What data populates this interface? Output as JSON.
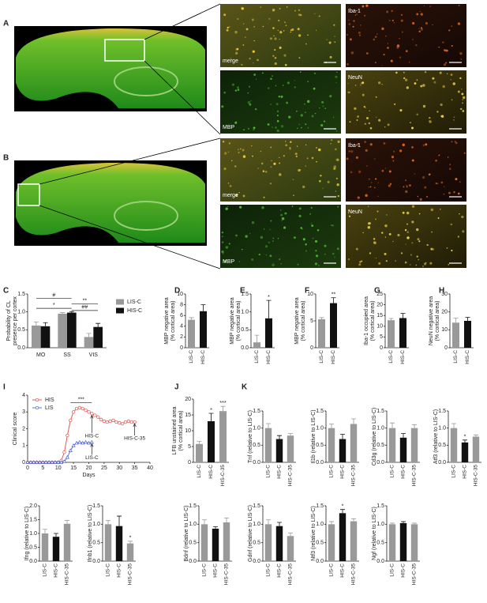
{
  "image_panels": [
    {
      "letter": "A",
      "tiles": [
        "merge",
        "Iba-1",
        "MBP",
        "NeuN"
      ]
    },
    {
      "letter": "B",
      "tiles": [
        "merge",
        "Iba-1",
        "MBP",
        "NeuN"
      ]
    }
  ],
  "chart_data": [
    {
      "type": "grouped_bar",
      "letter": "C",
      "ylabel": [
        "Probability of CL",
        "presence per cortex"
      ],
      "categories": [
        "MO",
        "SS",
        "VIS"
      ],
      "series": [
        {
          "name": "LIS-C",
          "color": "#999999",
          "values": [
            0.62,
            0.95,
            0.3
          ],
          "errors": [
            0.1,
            0.03,
            0.1
          ]
        },
        {
          "name": "HIS-C",
          "color": "#111111",
          "values": [
            0.6,
            0.98,
            0.58
          ],
          "errors": [
            0.1,
            0.03,
            0.1
          ]
        }
      ],
      "ylim": [
        0,
        1.5
      ],
      "yticks": [
        {
          "value": 0,
          "label": "0.0"
        },
        0.5,
        {
          "value": 1,
          "label": "1.0"
        },
        1.5
      ],
      "annotations": [
        "#",
        "**",
        "*",
        "##"
      ]
    },
    {
      "type": "bar",
      "letter": "D",
      "ylabel": [
        "MBP negative area",
        "(% cortical area)"
      ],
      "categories": [
        "LIS-C",
        "HIS-C"
      ],
      "values": [
        5.2,
        6.8
      ],
      "errors": [
        0.4,
        1.2
      ],
      "colors": [
        "#999999",
        "#111111"
      ],
      "sig": [
        null,
        null
      ],
      "ylim": [
        0,
        10
      ],
      "yticks": [
        0,
        2,
        4,
        6,
        8,
        10
      ]
    },
    {
      "type": "bar",
      "letter": "E",
      "ylabel": [
        "MBP negative area",
        "(% cortical area)"
      ],
      "categories": [
        "LIS-C",
        "HIS-C"
      ],
      "values": [
        0.15,
        0.82
      ],
      "errors": [
        0.2,
        0.5
      ],
      "colors": [
        "#999999",
        "#111111"
      ],
      "sig": [
        null,
        "*"
      ],
      "ylim": [
        0,
        1.5
      ],
      "yticks": [
        {
          "value": 0,
          "label": "0.0"
        },
        0.5,
        {
          "value": 1,
          "label": "1.0"
        },
        1.5
      ]
    },
    {
      "type": "bar",
      "letter": "F",
      "ylabel": [
        "MBP negative area",
        "(% cortical area)"
      ],
      "categories": [
        "LIS-C",
        "HIS-C"
      ],
      "values": [
        5.3,
        8.3
      ],
      "errors": [
        0.3,
        1.0
      ],
      "colors": [
        "#999999",
        "#111111"
      ],
      "sig": [
        null,
        "**"
      ],
      "ylim": [
        0,
        10
      ],
      "yticks": [
        0,
        5,
        10
      ]
    },
    {
      "type": "bar",
      "letter": "G",
      "ylabel": [
        "Iba-1 occupied area",
        "(% cortical area)"
      ],
      "categories": [
        "LIS-C",
        "HIS-C"
      ],
      "values": [
        12.8,
        13.8
      ],
      "errors": [
        0.8,
        2.2
      ],
      "colors": [
        "#999999",
        "#111111"
      ],
      "sig": [
        null,
        null
      ],
      "ylim": [
        0,
        25
      ],
      "yticks": [
        0,
        5,
        10,
        15,
        20,
        25
      ]
    },
    {
      "type": "bar",
      "letter": "H",
      "ylabel": [
        "NeuN negative area",
        "(% cortical area)"
      ],
      "categories": [
        "LIS-C",
        "HIS-C"
      ],
      "values": [
        14,
        15
      ],
      "errors": [
        2.5,
        2
      ],
      "colors": [
        "#999999",
        "#111111"
      ],
      "sig": [
        null,
        null
      ],
      "ylim": [
        0,
        30
      ],
      "yticks": [
        0,
        10,
        20,
        30
      ]
    },
    {
      "type": "line",
      "letter": "I",
      "ylabel": "Clinical score",
      "xlabel": "Days",
      "xlim": [
        0,
        40
      ],
      "xticks": [
        0,
        5,
        10,
        15,
        20,
        25,
        30,
        35,
        40
      ],
      "ylim": [
        0,
        4
      ],
      "yticks": [
        0,
        1,
        2,
        3,
        4
      ],
      "series": [
        {
          "name": "HIS",
          "color": "#e04848",
          "x": [
            0,
            1,
            2,
            3,
            4,
            5,
            6,
            7,
            8,
            9,
            10,
            11,
            12,
            13,
            14,
            15,
            16,
            17,
            18,
            19,
            20,
            21,
            22,
            23,
            24,
            25,
            26,
            27,
            28,
            29,
            30,
            31,
            32,
            33,
            34,
            35
          ],
          "values": [
            0,
            0,
            0,
            0,
            0,
            0,
            0,
            0,
            0,
            0,
            0,
            0.1,
            0.6,
            1.6,
            2.5,
            3.0,
            3.2,
            3.25,
            3.2,
            3.1,
            3.0,
            2.9,
            2.8,
            2.7,
            2.55,
            2.45,
            2.4,
            2.45,
            2.5,
            2.4,
            2.35,
            2.3,
            2.4,
            2.45,
            2.4,
            2.4
          ]
        },
        {
          "name": "LIS",
          "color": "#4a5fd0",
          "x": [
            0,
            1,
            2,
            3,
            4,
            5,
            6,
            7,
            8,
            9,
            10,
            11,
            12,
            13,
            14,
            15,
            16,
            17,
            18,
            19,
            20,
            21
          ],
          "values": [
            0,
            0,
            0,
            0,
            0,
            0,
            0,
            0,
            0,
            0,
            0,
            0,
            0.05,
            0.3,
            0.7,
            1.0,
            1.15,
            1.2,
            1.15,
            1.2,
            1.15,
            1.2
          ]
        }
      ],
      "annotations": [
        "***",
        "HIS-C",
        "LIS-C",
        "HIS-C-35"
      ]
    },
    {
      "type": "bar",
      "letter": "J",
      "ylabel": [
        "LFB unstained area",
        "(% cortical area)"
      ],
      "categories": [
        "LIS-C",
        "HIS-C",
        "HIS-C-35"
      ],
      "values": [
        5.8,
        13,
        16.2
      ],
      "errors": [
        0.8,
        2.5,
        1.5
      ],
      "colors": [
        "#999999",
        "#111111",
        "#999999"
      ],
      "sig": [
        null,
        "*",
        "***"
      ],
      "ylim": [
        0,
        20
      ],
      "yticks": [
        0,
        5,
        10,
        15,
        20
      ]
    },
    {
      "type": "bar",
      "letter": "K",
      "ylabel": "Tnf (relative to LIS-C)",
      "categories": [
        "LIS-C",
        "HIS-C",
        "HIS-C-35"
      ],
      "values": [
        1.0,
        0.68,
        0.78
      ],
      "errors": [
        0.13,
        0.1,
        0.06
      ],
      "colors": [
        "#999999",
        "#111111",
        "#999999"
      ],
      "sig": [
        null,
        null,
        null
      ],
      "ylim": [
        0,
        1.5
      ],
      "yticks": [
        {
          "value": 0,
          "label": "0.0"
        },
        0.5,
        {
          "value": 1,
          "label": "1.0"
        },
        1.5
      ]
    },
    {
      "type": "bar",
      "ylabel": "Il1b (relative to LIS-C)",
      "categories": [
        "LIS-C",
        "HIS-C",
        "HIS-C-35"
      ],
      "values": [
        1.0,
        0.68,
        1.12
      ],
      "errors": [
        0.12,
        0.14,
        0.15
      ],
      "colors": [
        "#999999",
        "#111111",
        "#999999"
      ],
      "sig": [
        null,
        null,
        null
      ],
      "ylim": [
        0,
        1.5
      ],
      "yticks": [
        {
          "value": 0,
          "label": "0.0"
        },
        0.5,
        {
          "value": 1,
          "label": "1.0"
        },
        1.5
      ]
    },
    {
      "type": "bar",
      "ylabel": "Cd3g (relative to LIS-C)",
      "categories": [
        "LIS-C",
        "HIS-C",
        "HIS-C-35"
      ],
      "values": [
        1.0,
        0.72,
        1.0
      ],
      "errors": [
        0.15,
        0.12,
        0.1
      ],
      "colors": [
        "#999999",
        "#111111",
        "#999999"
      ],
      "sig": [
        null,
        null,
        null
      ],
      "ylim": [
        0,
        1.5
      ],
      "yticks": [
        {
          "value": 0,
          "label": "0.0"
        },
        0.5,
        {
          "value": 1,
          "label": "1.0"
        },
        1.5
      ]
    },
    {
      "type": "bar",
      "ylabel": "Atf3 (relative to LIS-C)",
      "categories": [
        "LIS-C",
        "HIS-C",
        "HIS-C-35"
      ],
      "values": [
        1.0,
        0.58,
        0.75
      ],
      "errors": [
        0.13,
        0.07,
        0.05
      ],
      "colors": [
        "#999999",
        "#111111",
        "#999999"
      ],
      "sig": [
        null,
        "*",
        null
      ],
      "ylim": [
        0,
        1.5
      ],
      "yticks": [
        {
          "value": 0,
          "label": "0.0"
        },
        0.5,
        {
          "value": 1,
          "label": "1.0"
        },
        1.5
      ]
    },
    {
      "type": "bar",
      "ylabel": "Ifng (relative to LIS-C)",
      "categories": [
        "LIS-C",
        "HIS-C",
        "HIS-C-35"
      ],
      "values": [
        1.0,
        0.88,
        1.35
      ],
      "errors": [
        0.15,
        0.12,
        0.12
      ],
      "colors": [
        "#999999",
        "#111111",
        "#999999"
      ],
      "sig": [
        null,
        null,
        null
      ],
      "ylim": [
        0,
        2
      ],
      "yticks": [
        {
          "value": 0,
          "label": "0.0"
        },
        0.5,
        {
          "value": 1,
          "label": "1.0"
        },
        1.5,
        {
          "value": 2,
          "label": "2.0"
        }
      ]
    },
    {
      "type": "bar",
      "ylabel": "Ifnb1 (relative to LIS-C)",
      "categories": [
        "LIS-C",
        "HIS-C",
        "HIS-C-35"
      ],
      "values": [
        1.0,
        0.95,
        0.48
      ],
      "errors": [
        0.1,
        0.27,
        0.06
      ],
      "colors": [
        "#999999",
        "#111111",
        "#999999"
      ],
      "sig": [
        null,
        null,
        "*"
      ],
      "ylim": [
        0,
        1.5
      ],
      "yticks": [
        {
          "value": 0,
          "label": "0.0"
        },
        0.5,
        {
          "value": 1,
          "label": "1.0"
        },
        1.5
      ]
    },
    {
      "type": "bar",
      "ylabel": "Bdnf (relative to LIS-C)",
      "categories": [
        "LIS-C",
        "HIS-C",
        "HIS-C-35"
      ],
      "values": [
        1.0,
        0.88,
        1.05
      ],
      "errors": [
        0.12,
        0.05,
        0.12
      ],
      "colors": [
        "#999999",
        "#111111",
        "#999999"
      ],
      "sig": [
        null,
        null,
        null
      ],
      "ylim": [
        0,
        1.5
      ],
      "yticks": [
        {
          "value": 0,
          "label": "0.0"
        },
        0.5,
        {
          "value": 1,
          "label": "1.0"
        },
        1.5
      ]
    },
    {
      "type": "bar",
      "ylabel": "Gdnf (relative to LIS-C)",
      "categories": [
        "LIS-C",
        "HIS-C",
        "HIS-C-35"
      ],
      "values": [
        1.0,
        0.95,
        0.68
      ],
      "errors": [
        0.12,
        0.1,
        0.08
      ],
      "colors": [
        "#999999",
        "#111111",
        "#999999"
      ],
      "sig": [
        null,
        null,
        null
      ],
      "ylim": [
        0,
        1.5
      ],
      "yticks": [
        {
          "value": 0,
          "label": "0.0"
        },
        0.5,
        {
          "value": 1,
          "label": "1.0"
        },
        1.5
      ]
    },
    {
      "type": "bar",
      "ylabel": "Ntf3 (relative to LIS-C)",
      "categories": [
        "LIS-C",
        "HIS-C",
        "HIS-C-35"
      ],
      "values": [
        1.0,
        1.3,
        1.08
      ],
      "errors": [
        0.07,
        0.1,
        0.07
      ],
      "colors": [
        "#999999",
        "#111111",
        "#999999"
      ],
      "sig": [
        null,
        "*",
        null
      ],
      "ylim": [
        0,
        1.5
      ],
      "yticks": [
        {
          "value": 0,
          "label": "0.0"
        },
        0.5,
        {
          "value": 1,
          "label": "1.0"
        },
        1.5
      ]
    },
    {
      "type": "bar",
      "ylabel": "Ngf (relative to LIS-C)",
      "categories": [
        "LIS-C",
        "HIS-C",
        "HIS-C-35"
      ],
      "values": [
        1.0,
        1.03,
        1.0
      ],
      "errors": [
        0.03,
        0.04,
        0.03
      ],
      "colors": [
        "#999999",
        "#111111",
        "#999999"
      ],
      "sig": [
        null,
        null,
        null
      ],
      "ylim": [
        0,
        1.5
      ],
      "yticks": [
        {
          "value": 0,
          "label": "0.0"
        },
        0.5,
        {
          "value": 1,
          "label": "1.0"
        },
        1.5
      ]
    }
  ]
}
